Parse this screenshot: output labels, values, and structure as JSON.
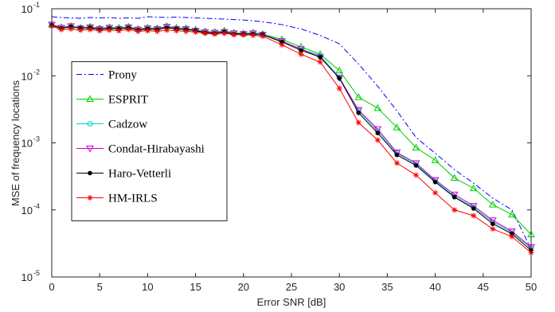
{
  "chart_data": {
    "type": "line",
    "xlabel": "Error SNR [dB]",
    "ylabel": "MSE of frequency locations",
    "x": [
      0,
      1,
      2,
      3,
      4,
      5,
      6,
      7,
      8,
      9,
      10,
      11,
      12,
      13,
      14,
      15,
      16,
      17,
      18,
      19,
      20,
      21,
      22,
      24,
      26,
      28,
      30,
      32,
      34,
      36,
      38,
      40,
      42,
      44,
      46,
      48,
      50
    ],
    "xlim": [
      0,
      50
    ],
    "xticks": [
      0,
      5,
      10,
      15,
      20,
      25,
      30,
      35,
      40,
      45,
      50
    ],
    "yscale": "log",
    "ylim": [
      1e-05,
      0.1
    ],
    "yticks": [
      {
        "value": 1e-05,
        "label": "10",
        "exponent": "-5"
      },
      {
        "value": 0.0001,
        "label": "10",
        "exponent": "-4"
      },
      {
        "value": 0.001,
        "label": "10",
        "exponent": "-3"
      },
      {
        "value": 0.01,
        "label": "10",
        "exponent": "-2"
      },
      {
        "value": 0.1,
        "label": "10",
        "exponent": "-1"
      }
    ],
    "legend": "center left",
    "series": [
      {
        "name": "Prony",
        "color": "#0000ff",
        "dash": "dashdot",
        "marker": "none",
        "values": [
          0.076,
          0.074,
          0.073,
          0.072,
          0.074,
          0.073,
          0.074,
          0.072,
          0.073,
          0.072,
          0.076,
          0.075,
          0.074,
          0.075,
          0.074,
          0.073,
          0.072,
          0.071,
          0.07,
          0.069,
          0.068,
          0.066,
          0.064,
          0.058,
          0.05,
          0.04,
          0.03,
          0.015,
          0.007,
          0.003,
          0.0012,
          0.0007,
          0.0004,
          0.00025,
          0.00015,
          0.0001,
          2.6e-05
        ]
      },
      {
        "name": "ESPRIT",
        "color": "#00cc00",
        "marker": "triangle-up",
        "values": [
          0.058,
          0.053,
          0.055,
          0.052,
          0.054,
          0.051,
          0.053,
          0.052,
          0.054,
          0.05,
          0.052,
          0.051,
          0.055,
          0.052,
          0.051,
          0.049,
          0.046,
          0.045,
          0.047,
          0.044,
          0.043,
          0.044,
          0.042,
          0.035,
          0.027,
          0.021,
          0.012,
          0.0048,
          0.0033,
          0.0017,
          0.00085,
          0.00055,
          0.0003,
          0.00021,
          0.00012,
          8.5e-05,
          4.3e-05
        ]
      },
      {
        "name": "Cadzow",
        "color": "#00cccc",
        "marker": "circle",
        "values": [
          0.057,
          0.052,
          0.054,
          0.052,
          0.053,
          0.05,
          0.052,
          0.051,
          0.053,
          0.049,
          0.051,
          0.05,
          0.053,
          0.051,
          0.05,
          0.048,
          0.045,
          0.044,
          0.046,
          0.043,
          0.043,
          0.043,
          0.042,
          0.033,
          0.025,
          0.02,
          0.0095,
          0.003,
          0.0015,
          0.0007,
          0.00048,
          0.00027,
          0.00016,
          0.00011,
          6.6e-05,
          4.6e-05,
          2.7e-05
        ]
      },
      {
        "name": "Condat-Hirabayashi",
        "color": "#cc00cc",
        "marker": "triangle-down",
        "values": [
          0.058,
          0.052,
          0.055,
          0.051,
          0.053,
          0.05,
          0.052,
          0.05,
          0.053,
          0.049,
          0.051,
          0.05,
          0.054,
          0.05,
          0.05,
          0.047,
          0.045,
          0.044,
          0.045,
          0.043,
          0.042,
          0.043,
          0.041,
          0.033,
          0.025,
          0.019,
          0.0093,
          0.0031,
          0.0016,
          0.00072,
          0.0005,
          0.00028,
          0.00017,
          0.000115,
          7e-05,
          4.8e-05,
          2.8e-05
        ]
      },
      {
        "name": "Haro-Vetterli",
        "color": "#000000",
        "marker": "dot",
        "values": [
          0.057,
          0.051,
          0.054,
          0.051,
          0.052,
          0.049,
          0.051,
          0.05,
          0.052,
          0.048,
          0.05,
          0.049,
          0.052,
          0.05,
          0.049,
          0.047,
          0.044,
          0.043,
          0.045,
          0.042,
          0.042,
          0.042,
          0.041,
          0.032,
          0.024,
          0.019,
          0.0092,
          0.0028,
          0.0014,
          0.00066,
          0.00046,
          0.00026,
          0.000155,
          0.000105,
          6.2e-05,
          4.4e-05,
          2.5e-05
        ]
      },
      {
        "name": "HM-IRLS",
        "color": "#ff0000",
        "marker": "star",
        "values": [
          0.055,
          0.049,
          0.05,
          0.048,
          0.049,
          0.047,
          0.048,
          0.047,
          0.049,
          0.046,
          0.047,
          0.046,
          0.048,
          0.047,
          0.046,
          0.045,
          0.043,
          0.042,
          0.043,
          0.041,
          0.041,
          0.04,
          0.039,
          0.029,
          0.021,
          0.016,
          0.0065,
          0.002,
          0.0011,
          0.0005,
          0.00033,
          0.00018,
          0.0001,
          8.2e-05,
          5.2e-05,
          4e-05,
          2.3e-05
        ]
      }
    ]
  }
}
